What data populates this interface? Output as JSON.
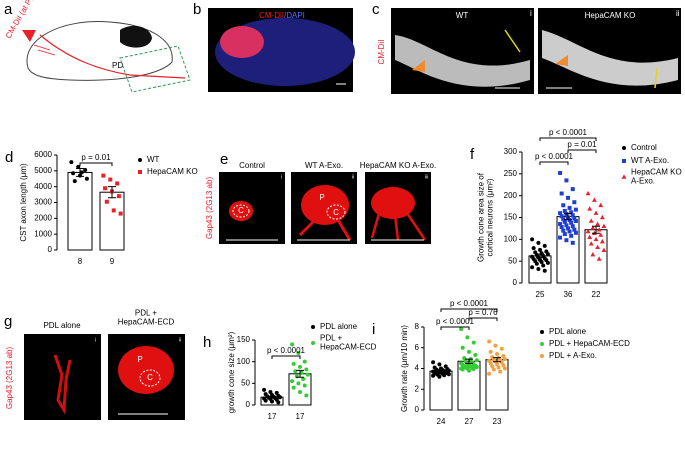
{
  "figure_panels": {
    "a": {
      "letter": "a",
      "dye_label": "CM-DiI (at P1)",
      "pd_label": "PD"
    },
    "b": {
      "letter": "b",
      "stain_red": "CM-DiI",
      "stain_blue": "/DAPI"
    },
    "c": {
      "letter": "c",
      "columns": [
        "WT",
        "HepaCAM KO"
      ],
      "dye": "CM-DiI",
      "romans": [
        "i",
        "ii"
      ]
    },
    "e": {
      "letter": "e",
      "columns": [
        "Control",
        "WT A-Exo.",
        "HepaCAM KO A-Exo."
      ],
      "stain": "Gap43 (2G13 ab)",
      "romans": [
        "i",
        "ii",
        "iii"
      ],
      "region_labels": [
        "C",
        "P",
        "C"
      ]
    },
    "g": {
      "letter": "g",
      "columns": [
        "PDL alone",
        "PDL +\nHepaCAM-ECD"
      ],
      "stain": "Gap43 (2G13 ab)",
      "romans": [
        "i",
        "ii"
      ],
      "region_labels": [
        "P",
        "C"
      ]
    }
  },
  "chart_data": [
    {
      "type": "bar",
      "panel": "d",
      "y_label": "CST axon length (μm)",
      "ylim": [
        0,
        6000
      ],
      "yticks": [
        0,
        1000,
        2000,
        3000,
        4000,
        5000,
        6000
      ],
      "annotations": [
        {
          "label": "p = 0.01",
          "from": 0,
          "to": 1
        }
      ],
      "series": [
        {
          "name": "WT",
          "color": "#000000",
          "marker": "circle",
          "mean": 4900,
          "error": 250,
          "n": 8,
          "points": [
            5550,
            5250,
            5050,
            4850,
            4700,
            4500,
            4350,
            4900
          ]
        },
        {
          "name": "HepaCAM KO",
          "color": "#e8202a",
          "marker": "square",
          "mean": 3650,
          "error": 350,
          "n": 9,
          "points": [
            4700,
            4450,
            4200,
            3900,
            3700,
            3400,
            3050,
            2500,
            2300
          ]
        }
      ]
    },
    {
      "type": "bar",
      "panel": "f",
      "y_label": "Growth cone area size of\ncortical neurons (μm²)",
      "ylim": [
        0,
        300
      ],
      "yticks": [
        0,
        50,
        100,
        150,
        200,
        250,
        300
      ],
      "annotations": [
        {
          "label": "p < 0.0001",
          "from": 0,
          "to": 1
        },
        {
          "label": "p = 0.01",
          "from": 1,
          "to": 2
        },
        {
          "label": "p < 0.0001",
          "from": 0,
          "to": 2
        }
      ],
      "series": [
        {
          "name": "Control",
          "color": "#000000",
          "marker": "circle",
          "mean": 62,
          "error": 4,
          "n": 25,
          "points": [
            100,
            92,
            85,
            80,
            76,
            72,
            70,
            68,
            66,
            64,
            62,
            60,
            58,
            56,
            55,
            53,
            52,
            50,
            48,
            46,
            44,
            40,
            36,
            32,
            28
          ]
        },
        {
          "name": "WT A-Exo.",
          "color": "#1f3fd4",
          "marker": "square",
          "mean": 152,
          "error": 7,
          "n": 36,
          "points": [
            252,
            235,
            215,
            205,
            195,
            185,
            178,
            172,
            168,
            165,
            162,
            160,
            158,
            155,
            153,
            150,
            148,
            146,
            144,
            142,
            140,
            138,
            135,
            132,
            130,
            128,
            125,
            122,
            120,
            118,
            115,
            112,
            108,
            104,
            98,
            92
          ]
        },
        {
          "name": "HepaCAM KO\nA-Exo.",
          "color": "#e8202a",
          "marker": "triangle",
          "mean": 122,
          "error": 8,
          "n": 22,
          "points": [
            205,
            190,
            178,
            170,
            160,
            150,
            142,
            135,
            130,
            126,
            122,
            118,
            114,
            110,
            105,
            100,
            95,
            90,
            82,
            75,
            65,
            55
          ]
        }
      ]
    },
    {
      "type": "bar",
      "panel": "h",
      "y_label": "growth cone size (μm²)",
      "ylim": [
        0,
        150
      ],
      "yticks": [
        0,
        50,
        100,
        150
      ],
      "annotations": [
        {
          "label": "p < 0.0001",
          "from": 0,
          "to": 1
        }
      ],
      "series": [
        {
          "name": "PDL alone",
          "color": "#000000",
          "marker": "circle",
          "mean": 18,
          "error": 2,
          "n": 17,
          "points": [
            35,
            30,
            28,
            25,
            23,
            21,
            20,
            19,
            18,
            17,
            16,
            15,
            14,
            12,
            10,
            8,
            6
          ]
        },
        {
          "name": "PDL +\nHepaCAM-ECD",
          "color": "#33cc33",
          "marker": "circle",
          "mean": 72,
          "error": 8,
          "n": 17,
          "points": [
            140,
            120,
            100,
            95,
            88,
            82,
            78,
            74,
            70,
            66,
            60,
            55,
            50,
            45,
            40,
            30,
            22
          ]
        }
      ]
    },
    {
      "type": "bar",
      "panel": "i",
      "y_label": "Growth rate (μm/10 min)",
      "ylim": [
        0,
        8
      ],
      "yticks": [
        0,
        2,
        4,
        6,
        8
      ],
      "annotations": [
        {
          "label": "p < 0.0001",
          "from": 0,
          "to": 1
        },
        {
          "label": "p = 0.76",
          "from": 1,
          "to": 2
        },
        {
          "label": "p < 0.0001",
          "from": 0,
          "to": 2
        }
      ],
      "series": [
        {
          "name": "PDL alone",
          "color": "#000000",
          "marker": "circle",
          "mean": 3.75,
          "error": 0.1,
          "n": 24,
          "points": [
            4.6,
            4.4,
            4.2,
            4.1,
            4.0,
            3.95,
            3.9,
            3.85,
            3.8,
            3.8,
            3.75,
            3.7,
            3.7,
            3.65,
            3.6,
            3.6,
            3.55,
            3.5,
            3.5,
            3.45,
            3.4,
            3.35,
            3.3,
            3.2
          ]
        },
        {
          "name": "PDL + HepaCAM-ECD",
          "color": "#33cc33",
          "marker": "circle",
          "mean": 4.7,
          "error": 0.2,
          "n": 27,
          "points": [
            7.8,
            7.0,
            6.5,
            6.0,
            5.6,
            5.3,
            5.0,
            4.9,
            4.8,
            4.7,
            4.6,
            4.5,
            4.45,
            4.4,
            4.35,
            4.3,
            4.25,
            4.2,
            4.2,
            4.15,
            4.1,
            4.05,
            4.0,
            4.0,
            3.95,
            3.9,
            3.8
          ]
        },
        {
          "name": "PDL + A-Exo.",
          "color": "#f5a040",
          "marker": "circle",
          "mean": 4.85,
          "error": 0.2,
          "n": 23,
          "points": [
            6.6,
            6.2,
            5.9,
            5.6,
            5.4,
            5.2,
            5.1,
            5.0,
            4.9,
            4.85,
            4.8,
            4.75,
            4.7,
            4.6,
            4.5,
            4.4,
            4.3,
            4.2,
            4.1,
            4.0,
            3.9,
            3.7,
            3.5
          ]
        }
      ]
    }
  ]
}
